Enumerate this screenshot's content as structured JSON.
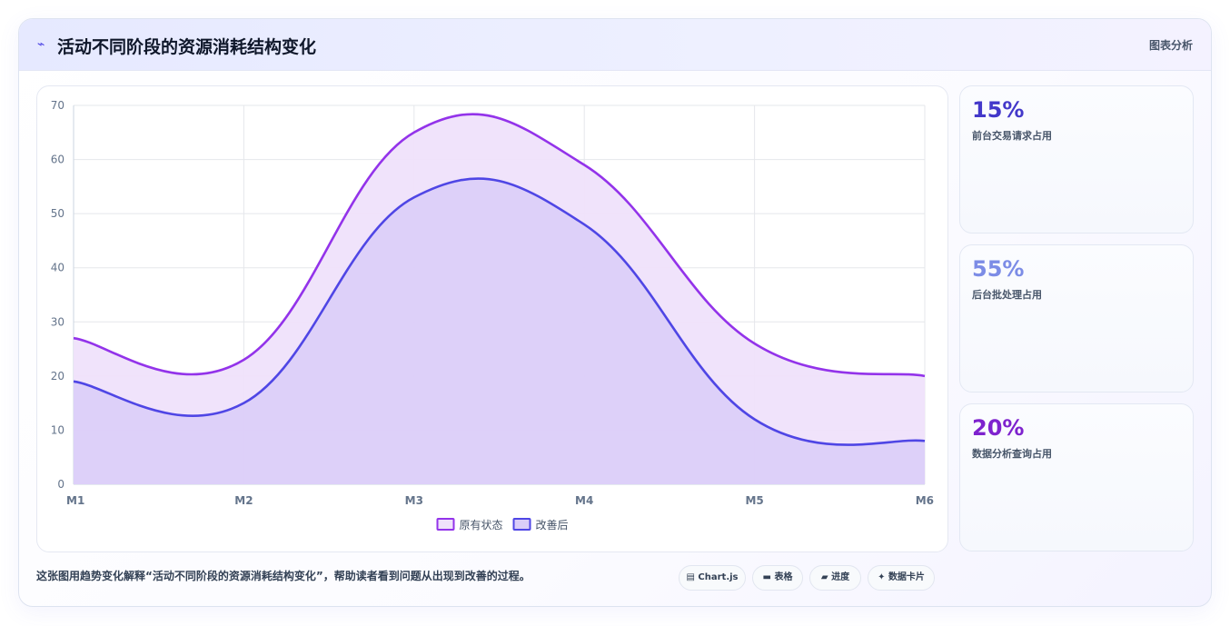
{
  "header": {
    "icon": "trend-icon",
    "icon_glyph": "⌁",
    "title": "活动不同阶段的资源消耗结构变化",
    "tag": "图表分析"
  },
  "chart_data": {
    "type": "area",
    "categories": [
      "M1",
      "M2",
      "M3",
      "M4",
      "M5",
      "M6"
    ],
    "series": [
      {
        "name": "原有状态",
        "values": [
          27,
          23,
          65,
          59,
          26,
          20
        ],
        "color": "#9333ea"
      },
      {
        "name": "改善后",
        "values": [
          19,
          15,
          53,
          48,
          12,
          8
        ],
        "color": "#4f46e5"
      }
    ],
    "ylim": [
      0,
      70
    ],
    "yticks": [
      0,
      10,
      20,
      30,
      40,
      50,
      60,
      70
    ],
    "grid": true,
    "legend": "bottom-center",
    "fill_colors": [
      "#efe1fb",
      "#dacdf8"
    ]
  },
  "stats": [
    {
      "value": "15%",
      "label": "前台交易请求占用",
      "color": "#4338ca"
    },
    {
      "value": "55%",
      "label": "后台批处理占用",
      "color": "#7c8ce6"
    },
    {
      "value": "20%",
      "label": "数据分析查询占用",
      "color": "#7e22ce"
    }
  ],
  "footer": {
    "description": "这张图用趋势变化解释“活动不同阶段的资源消耗结构变化”，帮助读者看到问题从出现到改善的过程。",
    "chips": [
      {
        "icon": "chart-icon",
        "glyph": "▤",
        "label": "Chart.js"
      },
      {
        "icon": "table-icon",
        "glyph": "▬",
        "label": "表格"
      },
      {
        "icon": "progress-icon",
        "glyph": "▰",
        "label": "进度"
      },
      {
        "icon": "sparkle-icon",
        "glyph": "✦",
        "label": "数据卡片"
      }
    ]
  }
}
